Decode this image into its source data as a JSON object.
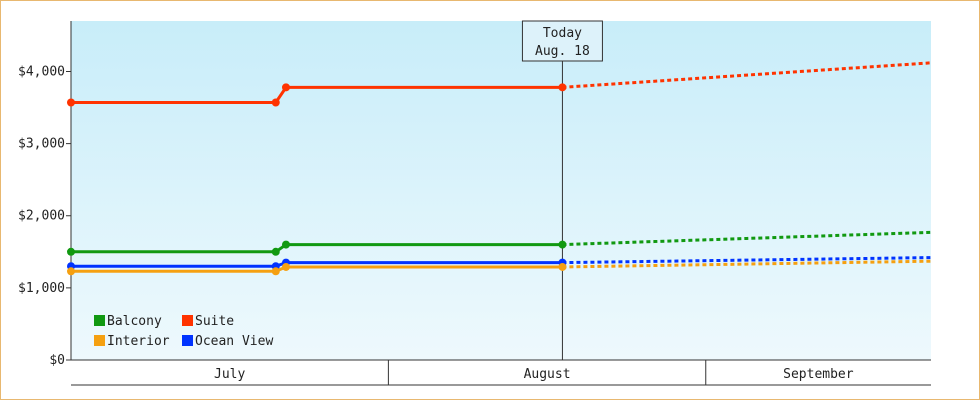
{
  "chart_data": {
    "type": "line",
    "yaxis": {
      "min": 0,
      "max": 4700,
      "ticks": [
        {
          "value": 0,
          "label": "$0"
        },
        {
          "value": 1000,
          "label": "$1,000"
        },
        {
          "value": 2000,
          "label": "$2,000"
        },
        {
          "value": 3000,
          "label": "$3,000"
        },
        {
          "value": 4000,
          "label": "$4,000"
        }
      ]
    },
    "xaxis": {
      "start": "2024-07-01",
      "end": "2024-09-23",
      "months": [
        {
          "label": "July",
          "start": "2024-07-01",
          "end": "2024-08-01"
        },
        {
          "label": "August",
          "start": "2024-08-01",
          "end": "2024-09-01"
        },
        {
          "label": "September",
          "start": "2024-09-01",
          "end": "2024-09-23"
        }
      ]
    },
    "today": {
      "date": "2024-08-18",
      "label_line1": "Today",
      "label_line2": "Aug. 18"
    },
    "colors": {
      "background_top": "#c8edf9",
      "background_bottom": "#eef9fd",
      "frame_border": "#e8b870"
    },
    "series": [
      {
        "name": "Suite",
        "color": "#ff3300",
        "actual": [
          {
            "x": "2024-07-01",
            "y": 3570
          },
          {
            "x": "2024-07-21",
            "y": 3570
          },
          {
            "x": "2024-07-22",
            "y": 3780
          },
          {
            "x": "2024-08-18",
            "y": 3780
          }
        ],
        "forecast": [
          {
            "x": "2024-08-18",
            "y": 3780
          },
          {
            "x": "2024-09-23",
            "y": 4120
          }
        ]
      },
      {
        "name": "Balcony",
        "color": "#119911",
        "actual": [
          {
            "x": "2024-07-01",
            "y": 1500
          },
          {
            "x": "2024-07-21",
            "y": 1500
          },
          {
            "x": "2024-07-22",
            "y": 1600
          },
          {
            "x": "2024-08-18",
            "y": 1600
          }
        ],
        "forecast": [
          {
            "x": "2024-08-18",
            "y": 1600
          },
          {
            "x": "2024-09-23",
            "y": 1770
          }
        ]
      },
      {
        "name": "Ocean View",
        "color": "#0033ff",
        "actual": [
          {
            "x": "2024-07-01",
            "y": 1300
          },
          {
            "x": "2024-07-21",
            "y": 1300
          },
          {
            "x": "2024-07-22",
            "y": 1350
          },
          {
            "x": "2024-08-18",
            "y": 1350
          }
        ],
        "forecast": [
          {
            "x": "2024-08-18",
            "y": 1350
          },
          {
            "x": "2024-09-23",
            "y": 1420
          }
        ]
      },
      {
        "name": "Interior",
        "color": "#f5a011",
        "actual": [
          {
            "x": "2024-07-01",
            "y": 1230
          },
          {
            "x": "2024-07-21",
            "y": 1230
          },
          {
            "x": "2024-07-22",
            "y": 1290
          },
          {
            "x": "2024-08-18",
            "y": 1290
          }
        ],
        "forecast": [
          {
            "x": "2024-08-18",
            "y": 1290
          },
          {
            "x": "2024-09-23",
            "y": 1370
          }
        ]
      }
    ],
    "legend": {
      "placement": "bottom-left",
      "rows": [
        [
          "Balcony",
          "Suite"
        ],
        [
          "Interior",
          "Ocean View"
        ]
      ]
    }
  }
}
